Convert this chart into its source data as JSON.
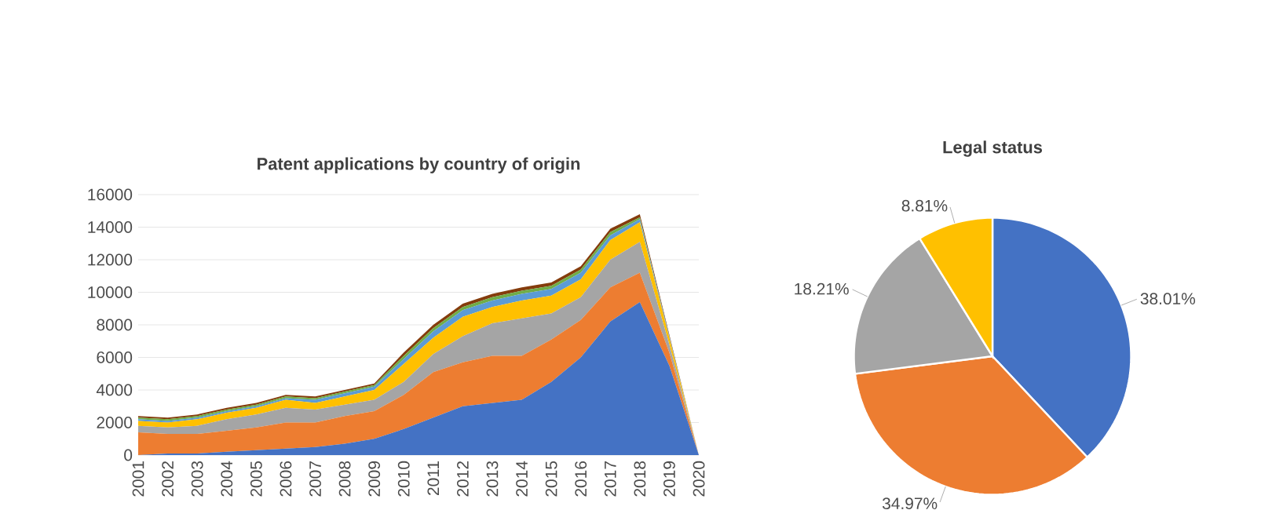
{
  "chart_data": [
    {
      "type": "area",
      "title": "Patent applications by country of origin",
      "stacked": true,
      "grid": "y",
      "categories": [
        "2001",
        "2002",
        "2003",
        "2004",
        "2005",
        "2006",
        "2007",
        "2008",
        "2009",
        "2010",
        "2011",
        "2012",
        "2013",
        "2014",
        "2015",
        "2016",
        "2017",
        "2018",
        "2019",
        "2020"
      ],
      "ylim": [
        0,
        16000
      ],
      "yticks": [
        0,
        2000,
        4000,
        6000,
        8000,
        10000,
        12000,
        14000,
        16000
      ],
      "series": [
        {
          "color": "#4472c4",
          "values": [
            0,
            100,
            100,
            200,
            300,
            400,
            500,
            700,
            1000,
            1600,
            2300,
            3000,
            3200,
            3400,
            4500,
            6000,
            8200,
            9400,
            5500,
            0
          ]
        },
        {
          "color": "#ed7d31",
          "values": [
            1400,
            1200,
            1200,
            1300,
            1400,
            1600,
            1500,
            1700,
            1700,
            2100,
            2800,
            2700,
            2900,
            2700,
            2600,
            2300,
            2100,
            1800,
            800,
            0
          ]
        },
        {
          "color": "#a5a5a5",
          "values": [
            400,
            400,
            500,
            700,
            800,
            900,
            800,
            700,
            700,
            800,
            1100,
            1600,
            2000,
            2300,
            1600,
            1400,
            1700,
            1900,
            500,
            0
          ]
        },
        {
          "color": "#ffc000",
          "values": [
            300,
            300,
            400,
            400,
            400,
            500,
            400,
            500,
            600,
            1100,
            1000,
            1200,
            1000,
            1100,
            1100,
            1100,
            1200,
            1200,
            400,
            0
          ]
        },
        {
          "color": "#5b9bd5",
          "values": [
            100,
            100,
            100,
            100,
            100,
            100,
            200,
            200,
            200,
            300,
            400,
            400,
            400,
            400,
            400,
            400,
            300,
            200,
            100,
            0
          ]
        },
        {
          "color": "#70ad47",
          "values": [
            100,
            100,
            100,
            100,
            100,
            100,
            100,
            100,
            100,
            200,
            200,
            200,
            200,
            200,
            200,
            200,
            200,
            100,
            0,
            0
          ]
        },
        {
          "color": "#843c0c",
          "values": [
            100,
            100,
            100,
            100,
            100,
            100,
            100,
            100,
            100,
            200,
            200,
            200,
            200,
            200,
            200,
            200,
            200,
            200,
            100,
            0
          ]
        }
      ]
    },
    {
      "type": "pie",
      "title": "Legal status",
      "categories": [
        null,
        null,
        null,
        null
      ],
      "values": [
        38.01,
        34.97,
        18.21,
        8.81
      ],
      "value_labels": [
        "38.01%",
        "34.97%",
        "18.21%",
        "8.81%"
      ],
      "colors": [
        "#4472c4",
        "#ed7d31",
        "#a5a5a5",
        "#ffc000"
      ]
    }
  ]
}
